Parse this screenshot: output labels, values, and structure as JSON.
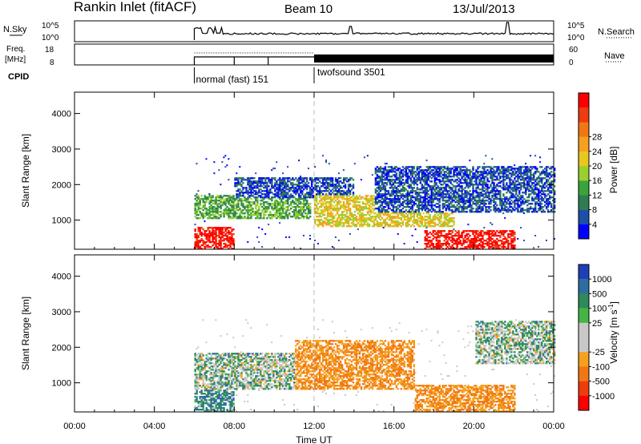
{
  "header": {
    "site": "Rankin Inlet (fitACF)",
    "beam": "Beam 10",
    "date": "13/Jul/2013"
  },
  "panels": {
    "nsky": {
      "left_label": "N.Sky",
      "right_label": "N.Search",
      "left_ticks": [
        "10^5",
        "10^0"
      ],
      "right_ticks": [
        "10^5",
        "10^0"
      ]
    },
    "freq": {
      "left_label": "Freq.",
      "left_unit": "[MHz]",
      "right_label": "Nave",
      "left_ticks": [
        "18",
        "8"
      ],
      "right_ticks": [
        "60",
        "0"
      ]
    },
    "cpid": {
      "label": "CPID",
      "modes": [
        {
          "name": "normal (fast) 151",
          "start_h": 6.0
        },
        {
          "name": "twofsound 3501",
          "start_h": 12.0
        }
      ]
    }
  },
  "time_axis": {
    "title": "Time UT",
    "range_h": [
      0,
      24
    ],
    "tick_labels": [
      "00:00",
      "04:00",
      "08:00",
      "12:00",
      "16:00",
      "20:00",
      "00:00"
    ],
    "tick_hours": [
      0,
      4,
      8,
      12,
      16,
      20,
      24
    ]
  },
  "range_axis": {
    "title": "Slant Range [km]",
    "range_km": [
      180,
      4600
    ],
    "tick_values": [
      1000,
      2000,
      3000,
      4000
    ],
    "tick_labels": [
      "1000",
      "2000",
      "3000",
      "4000"
    ]
  },
  "power_scale": {
    "title": "Power [dB]",
    "tick_labels": [
      "4",
      "8",
      "12",
      "16",
      "20",
      "24",
      "28"
    ],
    "colors": [
      "#0000ff",
      "#1e4ea8",
      "#2e7d52",
      "#3aa33a",
      "#9bcf2e",
      "#e8c81e",
      "#f5a01e",
      "#f07814",
      "#ee3c0f",
      "#ff0000"
    ]
  },
  "velocity_scale": {
    "title": "Velocity [m s^-1]",
    "tick_labels": [
      "1000",
      "500",
      "100",
      "25",
      "-25",
      "-100",
      "-500",
      "-1000"
    ],
    "colors": [
      "#1f3fb8",
      "#2e6da0",
      "#2e8a5a",
      "#44b544",
      "#c8c8c8",
      "#c8c8c8",
      "#f5a01e",
      "#f07814",
      "#ee3c0f",
      "#ff0000"
    ]
  },
  "chart_data": [
    {
      "type": "heatmap",
      "title": "Power [dB]",
      "xlabel": "",
      "ylabel": "Slant Range [km]",
      "xlim": [
        0,
        24
      ],
      "ylim": [
        180,
        4600
      ],
      "approx_regions": [
        {
          "t0": 6.0,
          "t1": 8.0,
          "r0": 180,
          "r1": 800,
          "level": 9
        },
        {
          "t0": 6.0,
          "t1": 11.8,
          "r0": 1000,
          "r1": 1700,
          "level": 3
        },
        {
          "t0": 8.0,
          "t1": 14.0,
          "r0": 1600,
          "r1": 2200,
          "level": 1
        },
        {
          "t0": 12.0,
          "t1": 19.0,
          "r0": 800,
          "r1": 1700,
          "level": 5
        },
        {
          "t0": 17.5,
          "t1": 22.0,
          "r0": 180,
          "r1": 700,
          "level": 9
        },
        {
          "t0": 15.0,
          "t1": 24.0,
          "r0": 1200,
          "r1": 2500,
          "level": 1
        }
      ]
    },
    {
      "type": "heatmap",
      "title": "Velocity [m s^-1]",
      "xlabel": "Time UT",
      "ylabel": "Slant Range [km]",
      "xlim": [
        0,
        24
      ],
      "ylim": [
        180,
        4600
      ],
      "approx_regions": [
        {
          "t0": 6.0,
          "t1": 12.0,
          "r0": 800,
          "r1": 1800,
          "value": 0
        },
        {
          "t0": 6.0,
          "t1": 8.0,
          "r0": 180,
          "r1": 800,
          "value": 100
        },
        {
          "t0": 11.0,
          "t1": 17.0,
          "r0": 800,
          "r1": 2200,
          "value": -300
        },
        {
          "t0": 17.0,
          "t1": 22.0,
          "r0": 180,
          "r1": 900,
          "value": -300
        },
        {
          "t0": 20.0,
          "t1": 24.0,
          "r0": 1500,
          "r1": 2700,
          "value": 0
        }
      ]
    }
  ]
}
